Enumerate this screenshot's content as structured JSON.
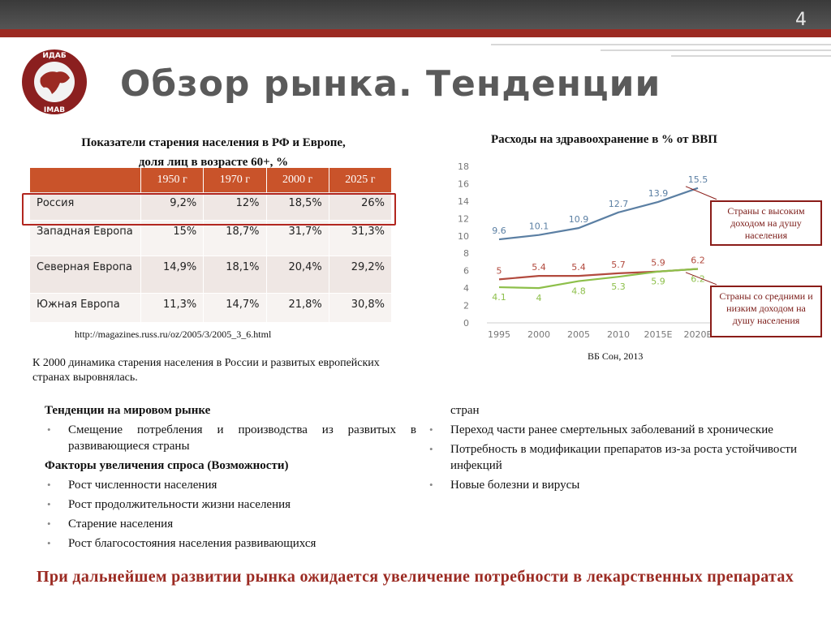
{
  "slide_number": "4",
  "title": "Обзор рынка. Тенденции",
  "logo": {
    "text_top": "ИДАБ",
    "text_bottom": "IMAB"
  },
  "table": {
    "caption_line1": "Показатели старения населения в РФ и  Европе,",
    "caption_line2": "доля лиц в возрасте 60+, %",
    "columns": [
      "",
      "1950 г",
      "1970 г",
      "2000 г",
      "2025 г"
    ],
    "rows": [
      {
        "name": "Россия",
        "v1950": "9,2%",
        "v1970": "12%",
        "v2000": "18,5%",
        "v2025": "26%"
      },
      {
        "name": "Западная Европа",
        "v1950": "15%",
        "v1970": "18,7%",
        "v2000": "31,7%",
        "v2025": "31,3%"
      },
      {
        "name": "Северная Европа",
        "v1950": "14,9%",
        "v1970": "18,1%",
        "v2000": "20,4%",
        "v2025": "29,2%"
      },
      {
        "name": "Южная Европа",
        "v1950": "11,3%",
        "v1970": "14,7%",
        "v2000": "21,8%",
        "v2025": "30,8%"
      }
    ],
    "url": "http://magazines.russ.ru/oz/2005/3/2005_3_6.html",
    "conclusion": "К 2000 динамика старения населения в России и развитых европейских странах выровнялась."
  },
  "chart_data": {
    "type": "line",
    "title": "Расходы  на  здравоохранение в % от ВВП",
    "categories": [
      "1995",
      "2000",
      "2005",
      "2010",
      "2015E",
      "2020E"
    ],
    "ylim": [
      0,
      18
    ],
    "yticks": [
      0,
      2,
      4,
      6,
      8,
      10,
      12,
      14,
      16,
      18
    ],
    "series": [
      {
        "values": [
          9.6,
          10.1,
          10.9,
          12.7,
          13.9,
          15.5
        ],
        "labels": [
          "9.6",
          "10.1",
          "10.9",
          "12.7",
          "13.9",
          "15.5"
        ],
        "color": "#5b7fa3"
      },
      {
        "values": [
          5,
          5.4,
          5.4,
          5.7,
          5.9,
          6.2
        ],
        "labels": [
          "5",
          "5.4",
          "5.4",
          "5.7",
          "5.9",
          "6.2"
        ],
        "color": "#b24a3e"
      },
      {
        "values": [
          4.1,
          4,
          4.8,
          5.3,
          5.9,
          6.2
        ],
        "labels": [
          "4.1",
          "4",
          "4.8",
          "5.3",
          "5.9",
          "6.2"
        ],
        "color": "#8dbf4a"
      }
    ],
    "annotations": [
      "Страны с высоким доходом на душу населения",
      "Страны со средними и низким  доходом на душу населения"
    ],
    "source": "ВБ Сон, 2013"
  },
  "bullets_left": {
    "heading1": "Тенденции на мировом рынке",
    "items1": [
      "Смещение потребления и производства  из развитых в развивающиеся страны"
    ],
    "heading2": "Факторы  увеличения спроса (Возможности)",
    "items2": [
      "Рост численности населения",
      "Рост продолжительности жизни населения",
      "Старение населения",
      "Рост   благосостояния   населения   развивающихся"
    ]
  },
  "bullets_right": {
    "continuation": "стран",
    "items": [
      "Переход части ранее смертельных заболеваний в хронические",
      "Потребность в модификации препаратов из-за роста устойчивости инфекций",
      "Новые болезни и вирусы"
    ]
  },
  "final_text": "При дальнейшем развитии рынка ожидается увеличение потребности в лекарственных препаратах",
  "colors": {
    "accent_red": "#9b2a22",
    "table_header": "#c9532a",
    "title_gray": "#5a5a5a"
  }
}
